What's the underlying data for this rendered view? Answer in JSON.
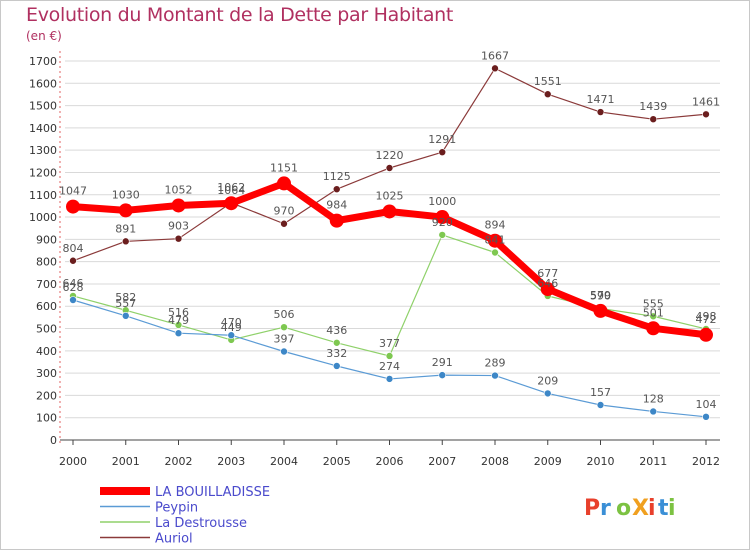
{
  "title": "Evolution du Montant de la Dette par Habitant",
  "unit_label": "(en €)",
  "chart_data": {
    "type": "line",
    "title": "Evolution du Montant de la Dette par Habitant",
    "ylabel": "(en €)",
    "xlabel": "",
    "x": [
      "2000",
      "2001",
      "2002",
      "2003",
      "2004",
      "2005",
      "2006",
      "2007",
      "2008",
      "2009",
      "2010",
      "2011",
      "2012"
    ],
    "ylim": [
      0,
      1700
    ],
    "yticks": [
      0,
      100,
      200,
      300,
      400,
      500,
      600,
      700,
      800,
      900,
      1000,
      1100,
      1200,
      1300,
      1400,
      1500,
      1600,
      1700
    ],
    "grid": true,
    "legend_position": "bottom-left",
    "series": [
      {
        "name": "LA BOUILLADISSE",
        "color": "#ff0000",
        "values": [
          1047,
          1030,
          1052,
          1062,
          1151,
          984,
          1025,
          1000,
          894,
          677,
          579,
          501,
          472
        ]
      },
      {
        "name": "Peypin",
        "color": "#5b9bd5",
        "values": [
          628,
          557,
          479,
          470,
          397,
          332,
          274,
          291,
          289,
          209,
          157,
          128,
          104
        ]
      },
      {
        "name": "La Destrousse",
        "color": "#8fd16a",
        "values": [
          646,
          582,
          516,
          449,
          506,
          436,
          377,
          920,
          841,
          646,
          590,
          555,
          498
        ]
      },
      {
        "name": "Auriol",
        "color": "#8b3a3a",
        "values": [
          804,
          891,
          903,
          1064,
          970,
          1125,
          1220,
          1291,
          1667,
          1551,
          1471,
          1439,
          1461
        ]
      }
    ]
  },
  "logo": {
    "text": "ProXiti"
  }
}
